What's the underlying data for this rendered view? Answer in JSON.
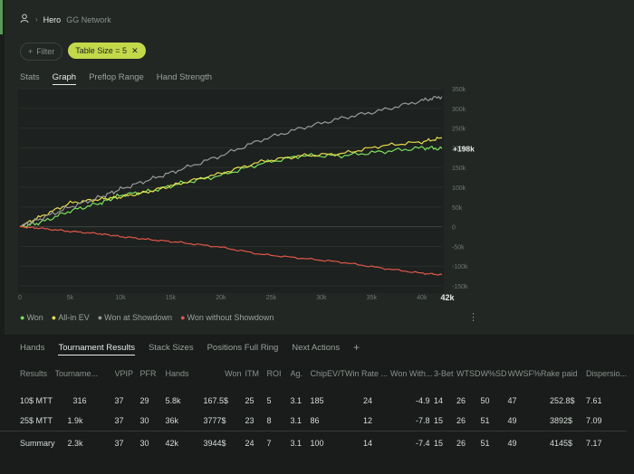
{
  "colors": {
    "won": "#7be05f",
    "all_in_ev": "#e6dc4a",
    "won_at_showdown": "#9a9a9a",
    "won_without_showdown": "#e0574a",
    "chip_bg": "#c3d94a"
  },
  "header": {
    "user_icon": "user-icon",
    "hero": "Hero",
    "network": "GG Network"
  },
  "filters": {
    "filter_label": "Filter",
    "chip_label": "Table Size = 5"
  },
  "tabs_top": [
    "Stats",
    "Graph",
    "Preflop Range",
    "Hand Strength"
  ],
  "chart_data": {
    "type": "line",
    "x_ticks": [
      "0",
      "5k",
      "10k",
      "15k",
      "20k",
      "25k",
      "30k",
      "35k",
      "40k"
    ],
    "x_end_label": "42k",
    "y_ticks": [
      "350k",
      "300k",
      "250k",
      "200k",
      "150k",
      "100k",
      "50k",
      "0",
      "-50k",
      "-100k",
      "-150k"
    ],
    "xlim": [
      0,
      42000
    ],
    "ylim": [
      -150000,
      350000
    ],
    "end_annotation": "+198k",
    "series": [
      {
        "name": "Won",
        "x": [
          0,
          2000,
          5000,
          8000,
          10000,
          13000,
          16000,
          20000,
          24000,
          28000,
          32000,
          36000,
          40000,
          42000
        ],
        "y": [
          0,
          10000,
          40000,
          60000,
          80000,
          90000,
          110000,
          130000,
          160000,
          180000,
          180000,
          190000,
          200000,
          198000
        ]
      },
      {
        "name": "All-in EV",
        "x": [
          0,
          2000,
          5000,
          8000,
          10000,
          13000,
          16000,
          20000,
          24000,
          28000,
          32000,
          36000,
          40000,
          42000
        ],
        "y": [
          0,
          25000,
          60000,
          70000,
          75000,
          90000,
          110000,
          135000,
          165000,
          180000,
          185000,
          205000,
          215000,
          225000
        ]
      },
      {
        "name": "Won at Showdown",
        "x": [
          0,
          2000,
          5000,
          8000,
          10000,
          13000,
          16000,
          20000,
          24000,
          28000,
          32000,
          36000,
          40000,
          42000
        ],
        "y": [
          0,
          20000,
          50000,
          75000,
          95000,
          120000,
          145000,
          180000,
          220000,
          250000,
          275000,
          295000,
          320000,
          330000
        ]
      },
      {
        "name": "Won without Showdown",
        "x": [
          0,
          2000,
          5000,
          8000,
          10000,
          13000,
          16000,
          20000,
          24000,
          28000,
          32000,
          36000,
          40000,
          42000
        ],
        "y": [
          0,
          -4000,
          -12000,
          -18000,
          -25000,
          -33000,
          -40000,
          -52000,
          -70000,
          -80000,
          -90000,
          -105000,
          -118000,
          -122000
        ]
      }
    ]
  },
  "legend": [
    "Won",
    "All-in EV",
    "Won at Showdown",
    "Won without Showdown"
  ],
  "tabs_bottom": [
    "Hands",
    "Tournament Results",
    "Stack Sizes",
    "Positions Full Ring",
    "Next Actions"
  ],
  "table": {
    "headers": [
      "Results",
      "Tourname...",
      "VPIP",
      "PFR",
      "Hands",
      "Won",
      "ITM",
      "ROI",
      "Ag.",
      "ChipEV/T",
      "Win Rate ...",
      "Won With...",
      "3-Bet",
      "WTSD",
      "W%SD",
      "WWSF%",
      "Rake paid",
      "Dispersio..."
    ],
    "rows": [
      [
        "10$ MTT",
        "316",
        "37",
        "29",
        "5.8k",
        "167.5$",
        "25",
        "5",
        "3.1",
        "185",
        "24",
        "-4.9",
        "14",
        "26",
        "50",
        "47",
        "252.8$",
        "7.61"
      ],
      [
        "25$ MTT",
        "1.9k",
        "37",
        "30",
        "36k",
        "3777$",
        "23",
        "8",
        "3.1",
        "86",
        "12",
        "-7.8",
        "15",
        "26",
        "51",
        "49",
        "3892$",
        "7.09"
      ]
    ],
    "summary": [
      "Summary",
      "2.3k",
      "37",
      "30",
      "42k",
      "3944$",
      "24",
      "7",
      "3.1",
      "100",
      "14",
      "-7.4",
      "15",
      "26",
      "51",
      "49",
      "4145$",
      "7.17"
    ]
  }
}
